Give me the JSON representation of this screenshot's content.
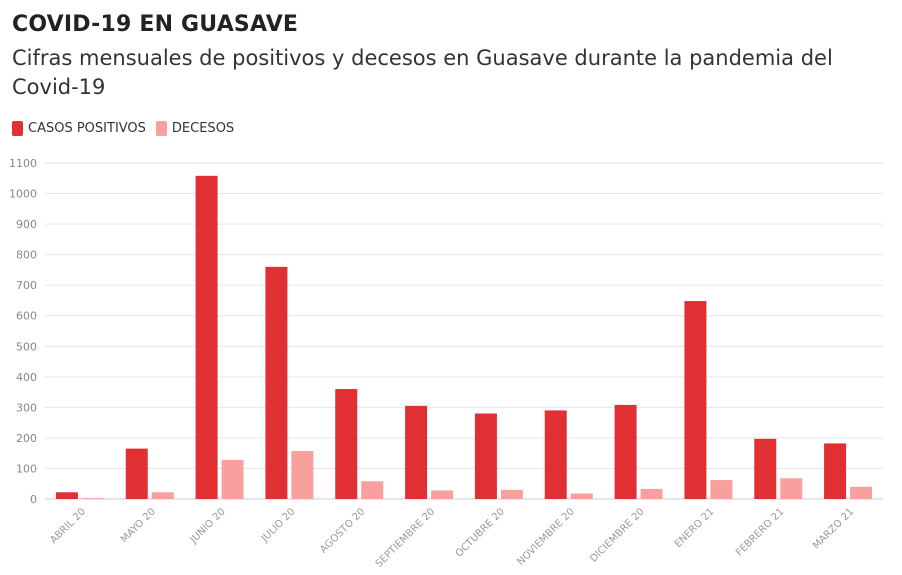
{
  "header": {
    "title": "COVID-19 EN GUASAVE",
    "subtitle": "Cifras mensuales de positivos y decesos en Guasave durante la pandemia del Covid-19"
  },
  "chart_data": {
    "type": "bar",
    "title": "COVID-19 EN GUASAVE",
    "subtitle": "Cifras mensuales de positivos y decesos en Guasave durante la pandemia del Covid-19",
    "xlabel": "",
    "ylabel": "",
    "ylim": [
      0,
      1100
    ],
    "yticks": [
      0,
      100,
      200,
      300,
      400,
      500,
      600,
      700,
      800,
      900,
      1000,
      1100
    ],
    "grid": true,
    "legend_position": "top-left",
    "categories": [
      "ABRIL 20",
      "MAYO 20",
      "JUNIO 20",
      "JULIO 20",
      "AGOSTO 20",
      "SEPTIEMBRE 20",
      "OCTUBRE 20",
      "NOVIEMBRE 20",
      "DICIEMBRE 20",
      "ENERO 21",
      "FEBRERO 21",
      "MARZO 21"
    ],
    "series": [
      {
        "name": "CASOS POSITIVOS",
        "color": "#e03034",
        "values": [
          22,
          165,
          1058,
          760,
          360,
          305,
          280,
          290,
          308,
          648,
          197,
          182
        ]
      },
      {
        "name": "DECESOS",
        "color": "#f7a09e",
        "values": [
          3,
          22,
          128,
          157,
          58,
          28,
          30,
          18,
          33,
          62,
          68,
          40
        ]
      }
    ]
  }
}
